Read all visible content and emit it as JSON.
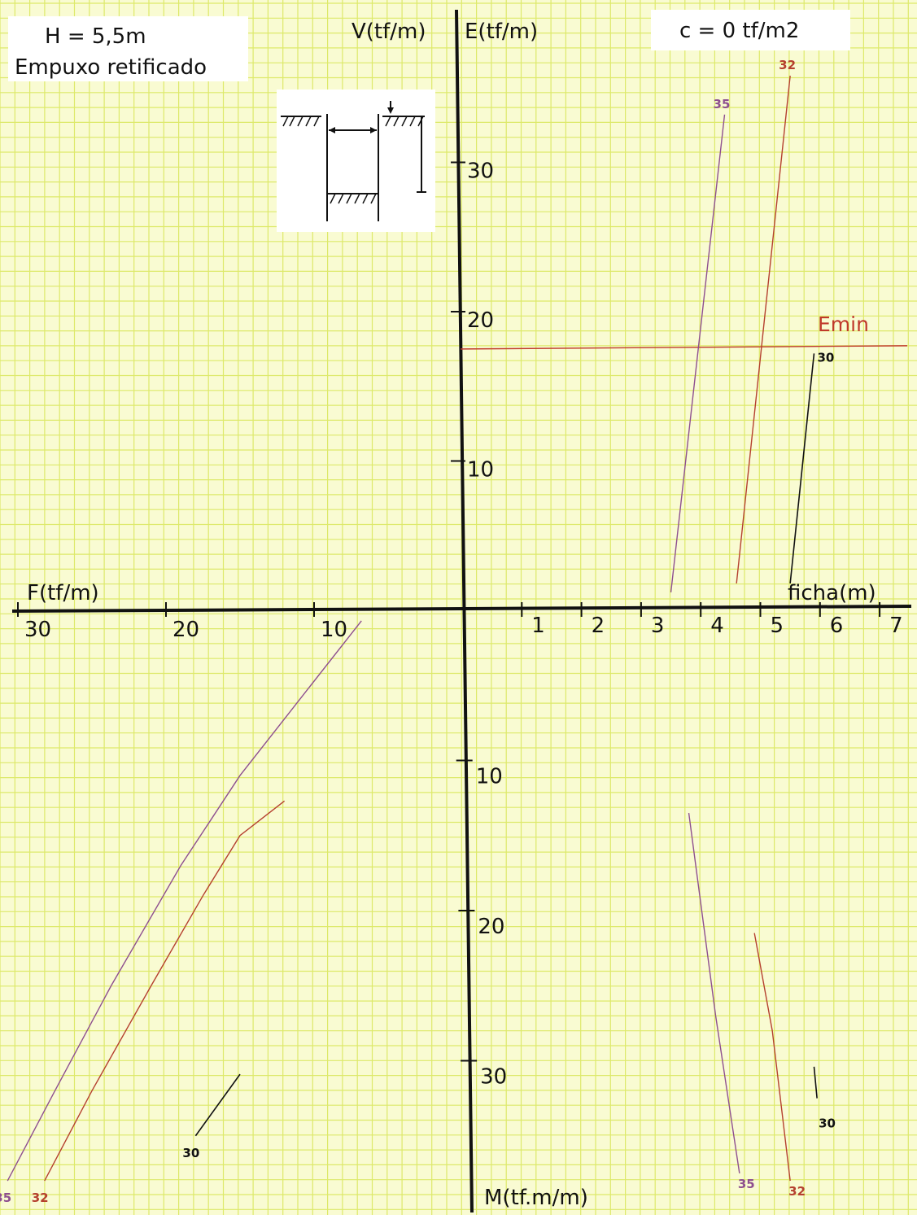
{
  "chart_data": {
    "type": "line",
    "header": {
      "height_text": "H  =  5,5m",
      "method_text": "Empuxo  retificado",
      "cohesion_text": "c  =  0  tf/m2"
    },
    "axes": {
      "left_label": "F(tf/m)",
      "right_label": "ficha(m)",
      "up_left_label": "V(tf/m)",
      "up_right_label": "E(tf/m)",
      "down_label": "M(tf.m/m)",
      "ficha_ticks": [
        1,
        2,
        3,
        4,
        5,
        6,
        7
      ],
      "force_ticks": [
        10,
        20,
        30
      ],
      "e_ticks": [
        10,
        20,
        30
      ],
      "m_ticks": [
        10,
        20,
        30
      ],
      "ficha_range": [
        0,
        7.5
      ],
      "e_range": [
        0,
        39
      ],
      "f_range": [
        0,
        30
      ],
      "m_range": [
        0,
        39
      ]
    },
    "emin": {
      "label": "Emin",
      "value": 17.5,
      "color": "#c0392b"
    },
    "colors": {
      "35": "#8e4f8f",
      "32": "#b5402f",
      "30": "#111111",
      "grid": "#dde96a",
      "paper": "#f9fbd2"
    },
    "curve_labels": {
      "35": "35",
      "32": "32",
      "30": "30"
    },
    "e_curves": [
      {
        "id": "35",
        "points": [
          [
            3.5,
            1.2
          ],
          [
            4.4,
            33.2
          ]
        ]
      },
      {
        "id": "32",
        "points": [
          [
            4.6,
            1.8
          ],
          [
            5.5,
            35.8
          ]
        ]
      },
      {
        "id": "30",
        "points": [
          [
            5.5,
            1.8
          ],
          [
            5.9,
            17.2
          ]
        ]
      }
    ],
    "f_curves": [
      {
        "id": "35",
        "points": [
          [
            30.7,
            -38.0
          ],
          [
            27.5,
            -32.0
          ],
          [
            23.7,
            -25.0
          ],
          [
            19.0,
            -17.0
          ],
          [
            15.0,
            -11.0
          ],
          [
            6.8,
            -0.7
          ]
        ]
      },
      {
        "id": "32",
        "points": [
          [
            28.2,
            -38.0
          ],
          [
            25.0,
            -32.0
          ],
          [
            21.0,
            -25.0
          ],
          [
            17.5,
            -19.0
          ],
          [
            15.0,
            -15.0
          ],
          [
            12.0,
            -12.7
          ]
        ]
      },
      {
        "id": "30",
        "points": [
          [
            18.0,
            -35.0
          ],
          [
            15.0,
            -30.9
          ]
        ]
      }
    ],
    "m_curves": [
      {
        "id": "35",
        "points": [
          [
            3.8,
            13.5
          ],
          [
            4.25,
            27.0
          ],
          [
            4.65,
            37.5
          ]
        ]
      },
      {
        "id": "32",
        "points": [
          [
            4.9,
            21.5
          ],
          [
            5.2,
            28.0
          ],
          [
            5.5,
            38.0
          ]
        ]
      },
      {
        "id": "30",
        "points": [
          [
            5.9,
            30.4
          ],
          [
            5.95,
            32.5
          ]
        ]
      }
    ]
  }
}
